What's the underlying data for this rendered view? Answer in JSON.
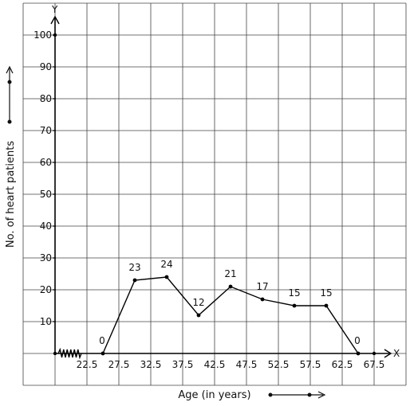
{
  "chart_data": {
    "type": "line",
    "xlabel": "Age (in years)",
    "ylabel": "No. of heart patients",
    "x_axis_letter": "X",
    "y_axis_letter": "Y",
    "x": [
      25,
      30,
      35,
      40,
      45,
      50,
      55,
      60,
      65
    ],
    "values": [
      0,
      23,
      24,
      12,
      21,
      17,
      15,
      15,
      0
    ],
    "point_labels": [
      "0",
      "23",
      "24",
      "12",
      "21",
      "17",
      "15",
      "15",
      "0"
    ],
    "x_tick_labels": [
      "22.5",
      "27.5",
      "32.5",
      "37.5",
      "42.5",
      "47.5",
      "52.5",
      "57.5",
      "62.5",
      "67.5"
    ],
    "x_ticks": [
      22.5,
      27.5,
      32.5,
      37.5,
      42.5,
      47.5,
      52.5,
      57.5,
      62.5,
      67.5
    ],
    "y_tick_labels": [
      "10",
      "20",
      "30",
      "40",
      "50",
      "60",
      "70",
      "80",
      "90",
      "100"
    ],
    "y_ticks": [
      10,
      20,
      30,
      40,
      50,
      60,
      70,
      80,
      90,
      100
    ],
    "ylim": [
      0,
      100
    ],
    "axis_break": true,
    "grid": true
  }
}
